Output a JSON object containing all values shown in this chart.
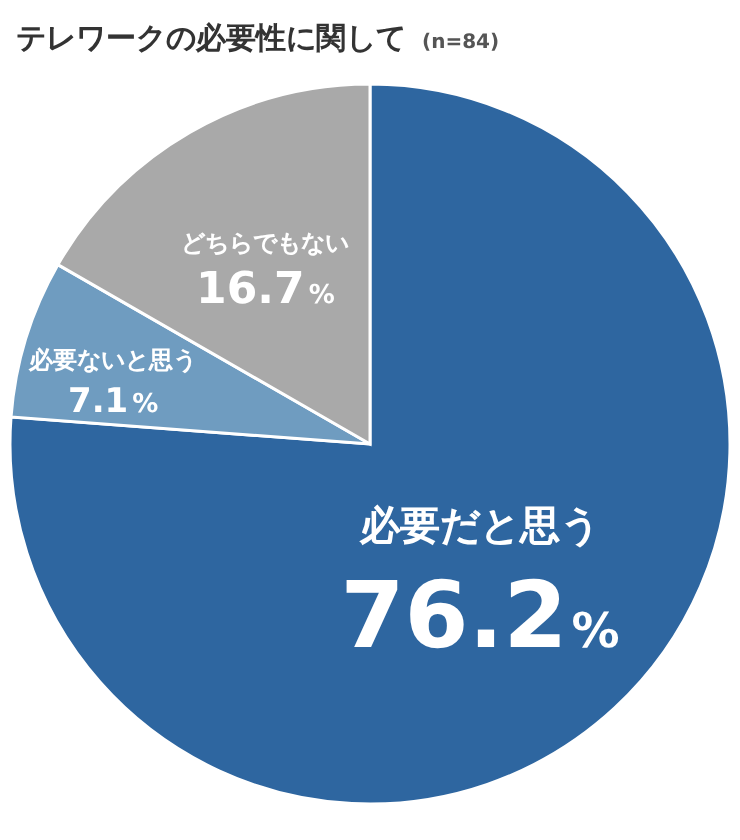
{
  "chart_data": {
    "type": "pie",
    "title": "テレワークの必要性に関して",
    "subtitle": "(n=84)",
    "categories": [
      "必要だと思う",
      "必要ないと思う",
      "どちらでもない"
    ],
    "values": [
      76.2,
      7.1,
      16.7
    ],
    "colors": [
      "#2e66a0",
      "#6f9cc0",
      "#a9a9a9"
    ],
    "value_labels": [
      "76.2%",
      "7.1%",
      "16.7%"
    ],
    "legend": false
  }
}
